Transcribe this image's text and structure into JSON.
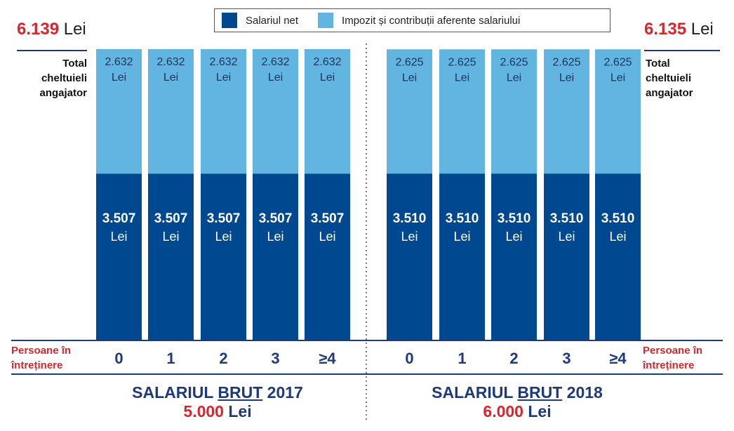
{
  "legend": {
    "net": "Salariul net",
    "tax": "Impozit și contribuții aferente salariului"
  },
  "colors": {
    "net": "#004990",
    "tax": "#62b5e0",
    "red": "#d7262e",
    "navy": "#1f3a7a"
  },
  "left": {
    "total_value": "6.139",
    "total_unit": "Lei",
    "total_label": [
      "Total",
      "cheltuieli",
      "angajator"
    ],
    "persons_label": [
      "Persoane în",
      "întreținere"
    ],
    "title_pre": "SALARIUL",
    "title_u": "BRUT",
    "title_year": "2017",
    "amount": "5.000",
    "amount_unit": "Lei"
  },
  "right": {
    "total_value": "6.135",
    "total_unit": "Lei",
    "total_label": [
      "Total",
      "cheltuieli",
      "angajator"
    ],
    "persons_label": [
      "Persoane în",
      "întreținere"
    ],
    "title_pre": "SALARIUL",
    "title_u": "BRUT",
    "title_year": "2018",
    "amount": "6.000",
    "amount_unit": "Lei"
  },
  "chart_data": [
    {
      "type": "bar",
      "stacked": true,
      "title": "SALARIUL BRUT 2017 5.000 Lei",
      "xlabel": "Persoane în întreținere",
      "categories": [
        "0",
        "1",
        "2",
        "3",
        "≥4"
      ],
      "series": [
        {
          "name": "Salariul net",
          "values": [
            3507,
            3507,
            3507,
            3507,
            3507
          ],
          "labels": [
            "3.507",
            "3.507",
            "3.507",
            "3.507",
            "3.507"
          ]
        },
        {
          "name": "Impozit și contribuții aferente salariului",
          "values": [
            2632,
            2632,
            2632,
            2632,
            2632
          ],
          "labels": [
            "2.632",
            "2.632",
            "2.632",
            "2.632",
            "2.632"
          ]
        }
      ],
      "unit": "Lei",
      "total": 6139
    },
    {
      "type": "bar",
      "stacked": true,
      "title": "SALARIUL BRUT 2018 6.000 Lei",
      "xlabel": "Persoane în întreținere",
      "categories": [
        "0",
        "1",
        "2",
        "3",
        "≥4"
      ],
      "series": [
        {
          "name": "Salariul net",
          "values": [
            3510,
            3510,
            3510,
            3510,
            3510
          ],
          "labels": [
            "3.510",
            "3.510",
            "3.510",
            "3.510",
            "3.510"
          ]
        },
        {
          "name": "Impozit și contribuții aferente salariului",
          "values": [
            2625,
            2625,
            2625,
            2625,
            2625
          ],
          "labels": [
            "2.625",
            "2.625",
            "2.625",
            "2.625",
            "2.625"
          ]
        }
      ],
      "unit": "Lei",
      "total": 6135
    }
  ]
}
